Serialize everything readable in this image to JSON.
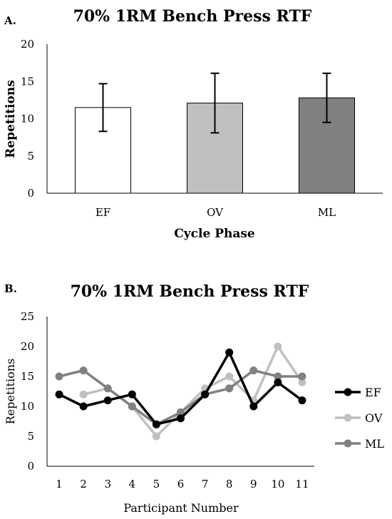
{
  "chart_data": [
    {
      "panel_label": "A.",
      "type": "bar",
      "title": "70% 1RM Bench Press RTF",
      "xlabel": "Cycle Phase",
      "ylabel": "Repetitions",
      "ylim": [
        0,
        20
      ],
      "yticks": [
        "0",
        "5",
        "10",
        "15",
        "20"
      ],
      "grid": false,
      "categories": [
        "EF",
        "OV",
        "ML"
      ],
      "values": [
        11.5,
        12.1,
        12.8
      ],
      "errors": [
        3.2,
        4.0,
        3.3
      ],
      "colors": [
        "#ffffff",
        "#c0c0c0",
        "#808080"
      ]
    },
    {
      "panel_label": "B.",
      "type": "line",
      "title": "70% 1RM Bench Press RTF",
      "xlabel": "Participant Number",
      "ylabel": "Repetitions",
      "ylim": [
        0,
        25
      ],
      "yticks": [
        "0",
        "5",
        "10",
        "15",
        "20",
        "25"
      ],
      "grid": false,
      "legend_position": "right",
      "x": [
        "1",
        "2",
        "3",
        "4",
        "5",
        "6",
        "7",
        "8",
        "9",
        "10",
        "11"
      ],
      "series": [
        {
          "name": "EF",
          "color": "#000000",
          "values": [
            12,
            10,
            11,
            12,
            7,
            8,
            12,
            19,
            10,
            14,
            11
          ]
        },
        {
          "name": "OV",
          "color": "#c0c0c0",
          "values": [
            null,
            12,
            13,
            10,
            5,
            9,
            13,
            15,
            11,
            20,
            14
          ]
        },
        {
          "name": "ML",
          "color": "#808080",
          "values": [
            15,
            16,
            13,
            10,
            7,
            9,
            12,
            13,
            16,
            15,
            15
          ]
        }
      ]
    }
  ]
}
